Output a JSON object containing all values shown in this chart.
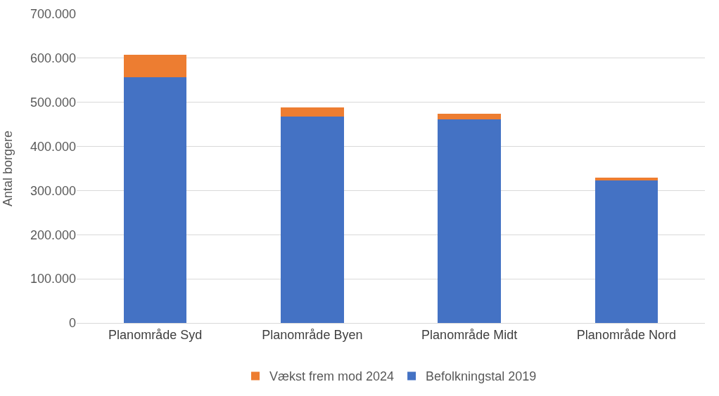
{
  "chart_data": {
    "type": "bar",
    "stacked": true,
    "ylabel": "Antal borgere",
    "categories": [
      "Planområde Syd",
      "Planområde Byen",
      "Planområde Midt",
      "Planområde Nord"
    ],
    "series": [
      {
        "name": "Befolkningstal 2019",
        "color": "#4472c4",
        "values": [
          557000,
          468000,
          461000,
          323000
        ]
      },
      {
        "name": "Vækst frem mod 2024",
        "color": "#ed7d31",
        "values": [
          51000,
          20000,
          13000,
          7000
        ]
      }
    ],
    "ylim": [
      0,
      700000
    ],
    "yticks": [
      {
        "value": 0,
        "label": "0"
      },
      {
        "value": 100000,
        "label": "100.000"
      },
      {
        "value": 200000,
        "label": "200.000"
      },
      {
        "value": 300000,
        "label": "300.000"
      },
      {
        "value": 400000,
        "label": "400.000"
      },
      {
        "value": 500000,
        "label": "500.000"
      },
      {
        "value": 600000,
        "label": "600.000"
      },
      {
        "value": 700000,
        "label": "700.000"
      }
    ],
    "grid": "y",
    "legend": "bottom"
  }
}
